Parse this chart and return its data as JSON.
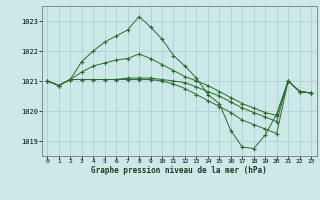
{
  "title": "Graphe pression niveau de la mer (hPa)",
  "background_color": "#cce8e8",
  "grid_color": "#aacccc",
  "line_color": "#2d6a2d",
  "xlim": [
    -0.5,
    23.5
  ],
  "ylim": [
    1018.5,
    1023.5
  ],
  "yticks": [
    1019,
    1020,
    1021,
    1022,
    1023
  ],
  "xticks": [
    0,
    1,
    2,
    3,
    4,
    5,
    6,
    7,
    8,
    9,
    10,
    11,
    12,
    13,
    14,
    15,
    16,
    17,
    18,
    19,
    20,
    21,
    22,
    23
  ],
  "line1": {
    "x": [
      0,
      1,
      2,
      3,
      4,
      5,
      6,
      7,
      8,
      9,
      10,
      11,
      12,
      13,
      14,
      15,
      16,
      17,
      18,
      19,
      20,
      21,
      22,
      23
    ],
    "y": [
      1021.0,
      1020.85,
      1021.05,
      1021.65,
      1022.0,
      1022.3,
      1022.5,
      1022.7,
      1023.15,
      1022.8,
      1022.4,
      1021.85,
      1021.5,
      1021.1,
      1020.55,
      1020.25,
      1019.35,
      1018.8,
      1018.75,
      1019.2,
      1019.9,
      1021.0,
      1020.65,
      1020.6
    ]
  },
  "line2": {
    "x": [
      0,
      1,
      2,
      3,
      4,
      5,
      6,
      7,
      8,
      9,
      10,
      11,
      12,
      13,
      14,
      15,
      16,
      17,
      18,
      19,
      20,
      21,
      22,
      23
    ],
    "y": [
      1021.0,
      1020.85,
      1021.05,
      1021.3,
      1021.5,
      1021.6,
      1021.7,
      1021.75,
      1021.9,
      1021.75,
      1021.55,
      1021.35,
      1021.15,
      1021.0,
      1020.85,
      1020.65,
      1020.45,
      1020.25,
      1020.1,
      1019.95,
      1019.85,
      1021.0,
      1020.65,
      1020.6
    ]
  },
  "line3": {
    "x": [
      0,
      1,
      2,
      3,
      4,
      5,
      6,
      7,
      8,
      9,
      10,
      11,
      12,
      13,
      14,
      15,
      16,
      17,
      18,
      19,
      20,
      21,
      22,
      23
    ],
    "y": [
      1021.0,
      1020.85,
      1021.05,
      1021.05,
      1021.05,
      1021.05,
      1021.05,
      1021.1,
      1021.1,
      1021.1,
      1021.05,
      1021.0,
      1020.95,
      1020.8,
      1020.65,
      1020.5,
      1020.3,
      1020.1,
      1019.95,
      1019.8,
      1019.65,
      1021.0,
      1020.65,
      1020.6
    ]
  },
  "line4": {
    "x": [
      0,
      1,
      2,
      3,
      4,
      5,
      6,
      7,
      8,
      9,
      10,
      11,
      12,
      13,
      14,
      15,
      16,
      17,
      18,
      19,
      20,
      21,
      22,
      23
    ],
    "y": [
      1021.0,
      1020.85,
      1021.05,
      1021.05,
      1021.05,
      1021.05,
      1021.05,
      1021.05,
      1021.05,
      1021.05,
      1021.0,
      1020.9,
      1020.75,
      1020.55,
      1020.35,
      1020.15,
      1019.95,
      1019.7,
      1019.55,
      1019.4,
      1019.25,
      1021.0,
      1020.65,
      1020.6
    ]
  }
}
